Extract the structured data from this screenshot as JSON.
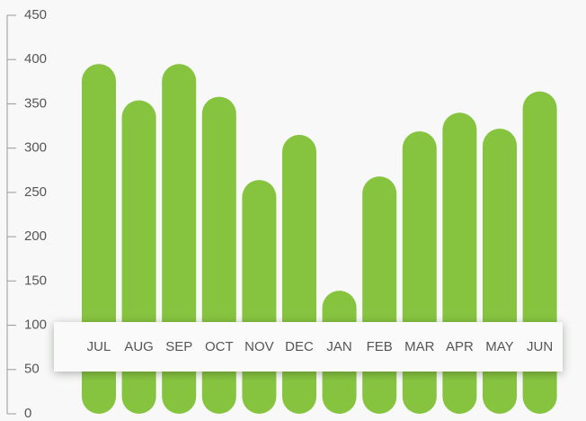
{
  "chart_data": {
    "type": "bar",
    "categories": [
      "JUL",
      "AUG",
      "SEP",
      "OCT",
      "NOV",
      "DEC",
      "JAN",
      "FEB",
      "MAR",
      "APR",
      "MAY",
      "JUN"
    ],
    "values": [
      395,
      354,
      395,
      358,
      264,
      315,
      139,
      268,
      319,
      340,
      322,
      364
    ],
    "color": "#86c440",
    "ylim": [
      0,
      450
    ],
    "yticks": [
      0,
      50,
      100,
      150,
      200,
      250,
      300,
      350,
      400,
      450
    ]
  }
}
